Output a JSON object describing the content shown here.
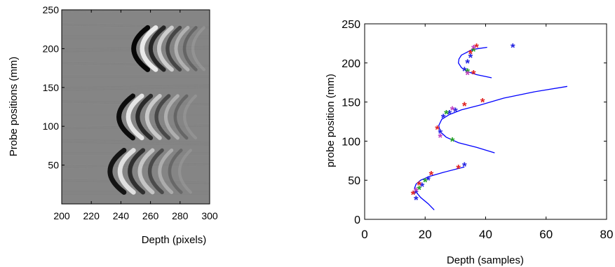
{
  "chart_data": [
    {
      "type": "heatmap",
      "title": "",
      "xlabel": "Depth (pixels)",
      "ylabel": "Probe positions (mm)",
      "xlim": [
        200,
        300
      ],
      "ylim": [
        0,
        250
      ],
      "xticks": [
        200,
        220,
        240,
        260,
        280,
        300
      ],
      "yticks": [
        50,
        100,
        150,
        200,
        250
      ],
      "colormap": "gray",
      "background_value": 0.5,
      "grid": false,
      "wave_groups": [
        {
          "center_probe_mm": 200,
          "start_depth": 242,
          "end_depth": 290,
          "amplitude": 1.0
        },
        {
          "center_probe_mm": 112,
          "start_depth": 232,
          "end_depth": 285,
          "amplitude": 0.95
        },
        {
          "center_probe_mm": 42,
          "start_depth": 226,
          "end_depth": 282,
          "amplitude": 0.9
        }
      ]
    },
    {
      "type": "scatter",
      "title": "",
      "xlabel": "Depth (samples)",
      "ylabel": "probe position (mm)",
      "xlim": [
        0,
        80
      ],
      "ylim": [
        0,
        250
      ],
      "xticks": [
        0,
        20,
        40,
        60,
        80
      ],
      "yticks": [
        0,
        50,
        100,
        150,
        200,
        250
      ],
      "grid": false,
      "series": [
        {
          "color": "#2020e0",
          "marker": "*",
          "values": [
            [
              17,
              25
            ],
            [
              17,
              33
            ],
            [
              19,
              42
            ],
            [
              21,
              50
            ],
            [
              33,
              68
            ],
            [
              25,
              110
            ],
            [
              26,
              130
            ],
            [
              28,
              135
            ],
            [
              30,
              138
            ],
            [
              33,
              190
            ],
            [
              34,
              200
            ],
            [
              35,
              207
            ],
            [
              49,
              220
            ]
          ]
        },
        {
          "color": "#e02020",
          "marker": "*",
          "values": [
            [
              16,
              32
            ],
            [
              18,
              44
            ],
            [
              22,
              57
            ],
            [
              31,
              65
            ],
            [
              24,
              115
            ],
            [
              33,
              145
            ],
            [
              39,
              150
            ],
            [
              36,
              186
            ],
            [
              35,
              212
            ],
            [
              37,
              220
            ]
          ]
        },
        {
          "color": "#20a020",
          "marker": "*",
          "values": [
            [
              18,
              38
            ],
            [
              20,
              48
            ],
            [
              29,
              100
            ],
            [
              27,
              135
            ],
            [
              34,
              188
            ],
            [
              36,
              215
            ]
          ]
        },
        {
          "color": "#c040c0",
          "marker": "*",
          "values": [
            [
              17,
              36
            ],
            [
              25,
              105
            ],
            [
              29,
              140
            ],
            [
              34,
              185
            ],
            [
              36,
              218
            ]
          ]
        }
      ],
      "fit_curves": [
        {
          "color": "#0000ff",
          "x": [
            23,
            21,
            18.5,
            17,
            16.5,
            17,
            18.5,
            21.5,
            26,
            33
          ],
          "y": [
            12,
            20,
            28,
            35,
            40,
            45,
            50,
            55,
            60,
            67
          ]
        },
        {
          "color": "#0000ff",
          "x": [
            43,
            37,
            31,
            27,
            25,
            24.5,
            25.5,
            28,
            32,
            38,
            46,
            56,
            67
          ],
          "y": [
            85,
            92,
            98,
            105,
            112,
            120,
            128,
            134,
            140,
            146,
            155,
            163,
            170
          ]
        },
        {
          "color": "#0000ff",
          "x": [
            42,
            37,
            34,
            32,
            31,
            31.2,
            32,
            33.5,
            35,
            37,
            40.5
          ],
          "y": [
            181,
            185,
            189,
            194,
            200,
            205,
            210,
            213,
            216,
            218,
            220
          ]
        }
      ]
    }
  ]
}
